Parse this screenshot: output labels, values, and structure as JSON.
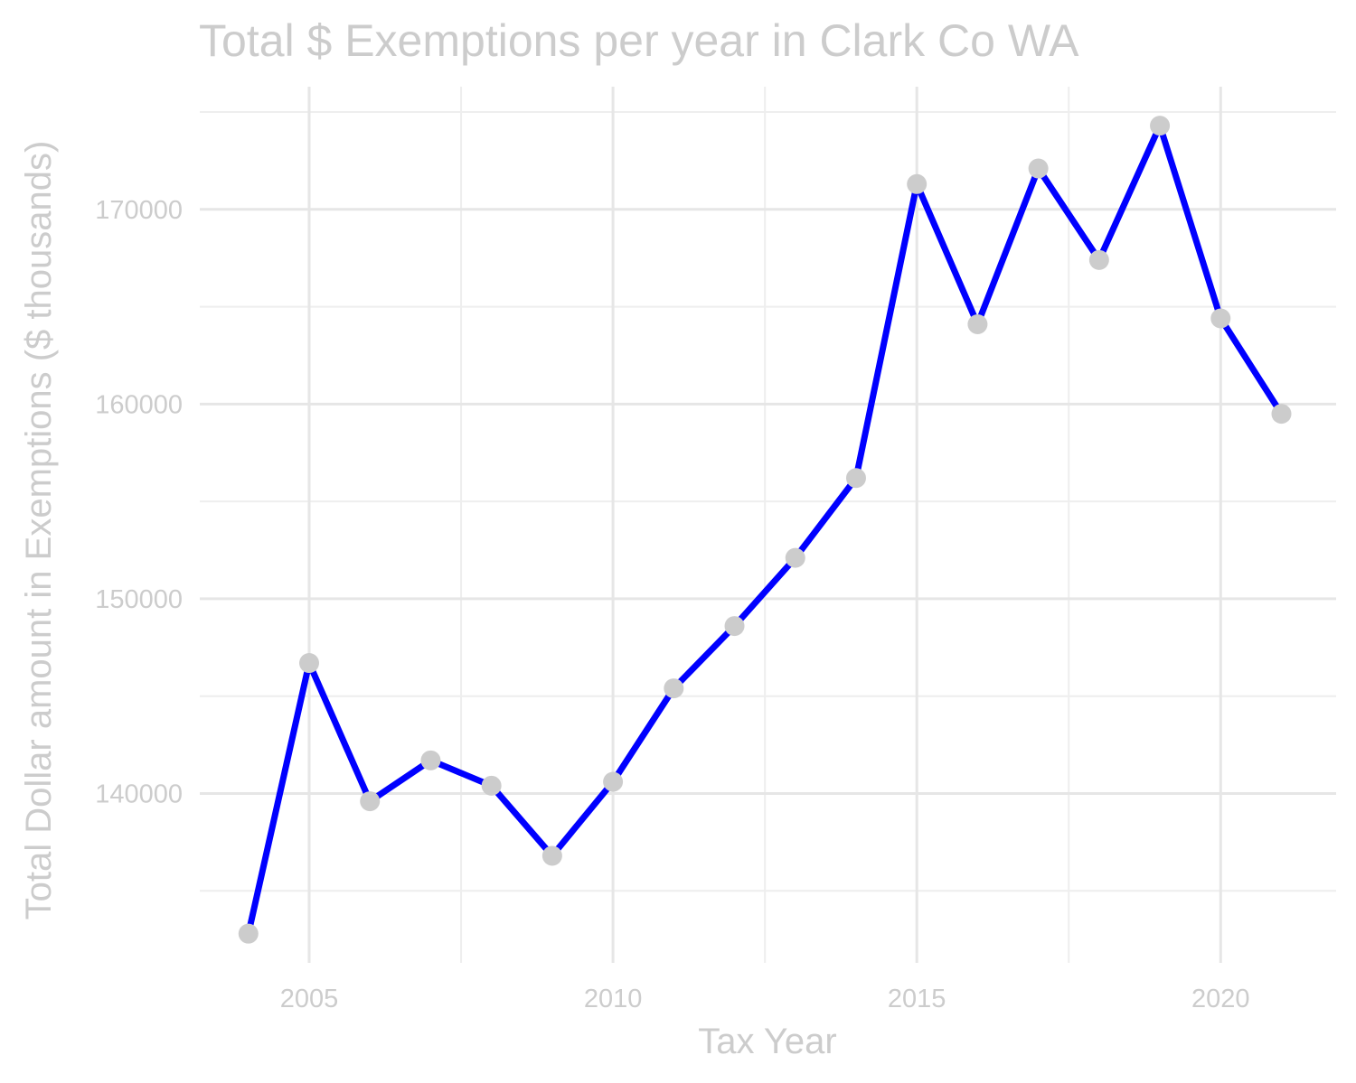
{
  "chart_data": {
    "type": "line",
    "title": "Total $ Exemptions per year in Clark Co WA",
    "xlabel": "Tax Year",
    "ylabel": "Total Dollar amount in Exemptions ($ thousands)",
    "x_ticks": [
      2005,
      2010,
      2015,
      2020
    ],
    "y_ticks": [
      140000,
      150000,
      160000,
      170000
    ],
    "x_tick_labels": [
      "2005",
      "2010",
      "2015",
      "2020"
    ],
    "y_tick_labels": [
      "140000",
      "150000",
      "160000",
      "170000"
    ],
    "xlim": [
      2003.2,
      2021.9
    ],
    "ylim": [
      131300,
      176300
    ],
    "grid": true,
    "line_color": "#0000ff",
    "point_color": "#cccccc",
    "series": [
      {
        "x": [
          2004,
          2005,
          2006,
          2007,
          2008,
          2009,
          2010,
          2011,
          2012,
          2013,
          2014,
          2015,
          2016,
          2017,
          2018,
          2019,
          2020,
          2021
        ],
        "values": [
          132800,
          146700,
          139600,
          141700,
          140400,
          136800,
          140600,
          145400,
          148600,
          152100,
          156200,
          171300,
          164100,
          172100,
          167400,
          174300,
          164400,
          159500
        ]
      }
    ]
  }
}
